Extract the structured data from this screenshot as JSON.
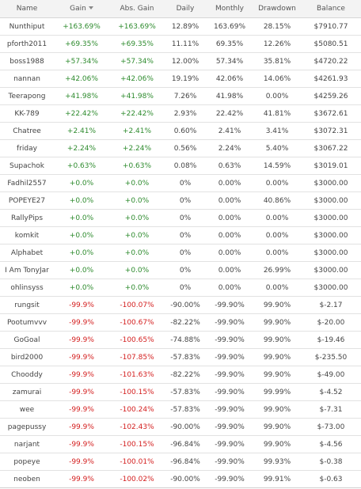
{
  "header": {
    "name": "Name",
    "gain": "Gain",
    "abs_gain": "Abs. Gain",
    "daily": "Daily",
    "monthly": "Monthly",
    "drawdown": "Drawdown",
    "balance": "Balance"
  },
  "colors": {
    "positive": "#2e8b2e",
    "negative": "#d42020"
  },
  "rows": [
    {
      "name": "Nunthiput",
      "gain": "+163.69%",
      "abs_gain": "+163.69%",
      "daily": "12.89%",
      "monthly": "163.69%",
      "drawdown": "28.15%",
      "balance": "$7910.77",
      "sign": "pos"
    },
    {
      "name": "pforth2011",
      "gain": "+69.35%",
      "abs_gain": "+69.35%",
      "daily": "11.11%",
      "monthly": "69.35%",
      "drawdown": "12.26%",
      "balance": "$5080.51",
      "sign": "pos"
    },
    {
      "name": "boss1988",
      "gain": "+57.34%",
      "abs_gain": "+57.34%",
      "daily": "12.00%",
      "monthly": "57.34%",
      "drawdown": "35.81%",
      "balance": "$4720.22",
      "sign": "pos"
    },
    {
      "name": "nannan",
      "gain": "+42.06%",
      "abs_gain": "+42.06%",
      "daily": "19.19%",
      "monthly": "42.06%",
      "drawdown": "14.06%",
      "balance": "$4261.93",
      "sign": "pos"
    },
    {
      "name": "Teerapong",
      "gain": "+41.98%",
      "abs_gain": "+41.98%",
      "daily": "7.26%",
      "monthly": "41.98%",
      "drawdown": "0.00%",
      "balance": "$4259.26",
      "sign": "pos"
    },
    {
      "name": "KK-789",
      "gain": "+22.42%",
      "abs_gain": "+22.42%",
      "daily": "2.93%",
      "monthly": "22.42%",
      "drawdown": "41.81%",
      "balance": "$3672.61",
      "sign": "pos"
    },
    {
      "name": "Chatree",
      "gain": "+2.41%",
      "abs_gain": "+2.41%",
      "daily": "0.60%",
      "monthly": "2.41%",
      "drawdown": "3.41%",
      "balance": "$3072.31",
      "sign": "pos"
    },
    {
      "name": "friday",
      "gain": "+2.24%",
      "abs_gain": "+2.24%",
      "daily": "0.56%",
      "monthly": "2.24%",
      "drawdown": "5.40%",
      "balance": "$3067.22",
      "sign": "pos"
    },
    {
      "name": "Supachok",
      "gain": "+0.63%",
      "abs_gain": "+0.63%",
      "daily": "0.08%",
      "monthly": "0.63%",
      "drawdown": "14.59%",
      "balance": "$3019.01",
      "sign": "pos"
    },
    {
      "name": "Fadhil2557",
      "gain": "+0.0%",
      "abs_gain": "+0.0%",
      "daily": "0%",
      "monthly": "0.00%",
      "drawdown": "0.00%",
      "balance": "$3000.00",
      "sign": "pos"
    },
    {
      "name": "POPEYE27",
      "gain": "+0.0%",
      "abs_gain": "+0.0%",
      "daily": "0%",
      "monthly": "0.00%",
      "drawdown": "40.86%",
      "balance": "$3000.00",
      "sign": "pos"
    },
    {
      "name": "RallyPips",
      "gain": "+0.0%",
      "abs_gain": "+0.0%",
      "daily": "0%",
      "monthly": "0.00%",
      "drawdown": "0.00%",
      "balance": "$3000.00",
      "sign": "pos"
    },
    {
      "name": "komkit",
      "gain": "+0.0%",
      "abs_gain": "+0.0%",
      "daily": "0%",
      "monthly": "0.00%",
      "drawdown": "0.00%",
      "balance": "$3000.00",
      "sign": "pos"
    },
    {
      "name": "Alphabet",
      "gain": "+0.0%",
      "abs_gain": "+0.0%",
      "daily": "0%",
      "monthly": "0.00%",
      "drawdown": "0.00%",
      "balance": "$3000.00",
      "sign": "pos"
    },
    {
      "name": "I Am TonyJar",
      "gain": "+0.0%",
      "abs_gain": "+0.0%",
      "daily": "0%",
      "monthly": "0.00%",
      "drawdown": "26.99%",
      "balance": "$3000.00",
      "sign": "pos"
    },
    {
      "name": "ohlinsyss",
      "gain": "+0.0%",
      "abs_gain": "+0.0%",
      "daily": "0%",
      "monthly": "0.00%",
      "drawdown": "0.00%",
      "balance": "$3000.00",
      "sign": "pos"
    },
    {
      "name": "rungsit",
      "gain": "-99.9%",
      "abs_gain": "-100.07%",
      "daily": "-90.00%",
      "monthly": "-99.90%",
      "drawdown": "99.90%",
      "balance": "$-2.17",
      "sign": "neg"
    },
    {
      "name": "Pootumvvv",
      "gain": "-99.9%",
      "abs_gain": "-100.67%",
      "daily": "-82.22%",
      "monthly": "-99.90%",
      "drawdown": "99.90%",
      "balance": "$-20.00",
      "sign": "neg"
    },
    {
      "name": "GoGoal",
      "gain": "-99.9%",
      "abs_gain": "-100.65%",
      "daily": "-74.88%",
      "monthly": "-99.90%",
      "drawdown": "99.90%",
      "balance": "$-19.46",
      "sign": "neg"
    },
    {
      "name": "bird2000",
      "gain": "-99.9%",
      "abs_gain": "-107.85%",
      "daily": "-57.83%",
      "monthly": "-99.90%",
      "drawdown": "99.90%",
      "balance": "$-235.50",
      "sign": "neg"
    },
    {
      "name": "Chooddy",
      "gain": "-99.9%",
      "abs_gain": "-101.63%",
      "daily": "-82.22%",
      "monthly": "-99.90%",
      "drawdown": "99.90%",
      "balance": "$-49.00",
      "sign": "neg"
    },
    {
      "name": "zamurai",
      "gain": "-99.9%",
      "abs_gain": "-100.15%",
      "daily": "-57.83%",
      "monthly": "-99.90%",
      "drawdown": "99.99%",
      "balance": "$-4.52",
      "sign": "neg"
    },
    {
      "name": "wee",
      "gain": "-99.9%",
      "abs_gain": "-100.24%",
      "daily": "-57.83%",
      "monthly": "-99.90%",
      "drawdown": "99.90%",
      "balance": "$-7.31",
      "sign": "neg"
    },
    {
      "name": "pagepussy",
      "gain": "-99.9%",
      "abs_gain": "-102.43%",
      "daily": "-90.00%",
      "monthly": "-99.90%",
      "drawdown": "99.90%",
      "balance": "$-73.00",
      "sign": "neg"
    },
    {
      "name": "narjant",
      "gain": "-99.9%",
      "abs_gain": "-100.15%",
      "daily": "-96.84%",
      "monthly": "-99.90%",
      "drawdown": "99.90%",
      "balance": "$-4.56",
      "sign": "neg"
    },
    {
      "name": "popeye",
      "gain": "-99.9%",
      "abs_gain": "-100.01%",
      "daily": "-96.84%",
      "monthly": "-99.90%",
      "drawdown": "99.93%",
      "balance": "$-0.38",
      "sign": "neg"
    },
    {
      "name": "neoben",
      "gain": "-99.9%",
      "abs_gain": "-100.02%",
      "daily": "-90.00%",
      "monthly": "-99.90%",
      "drawdown": "99.91%",
      "balance": "$-0.63",
      "sign": "neg"
    }
  ]
}
